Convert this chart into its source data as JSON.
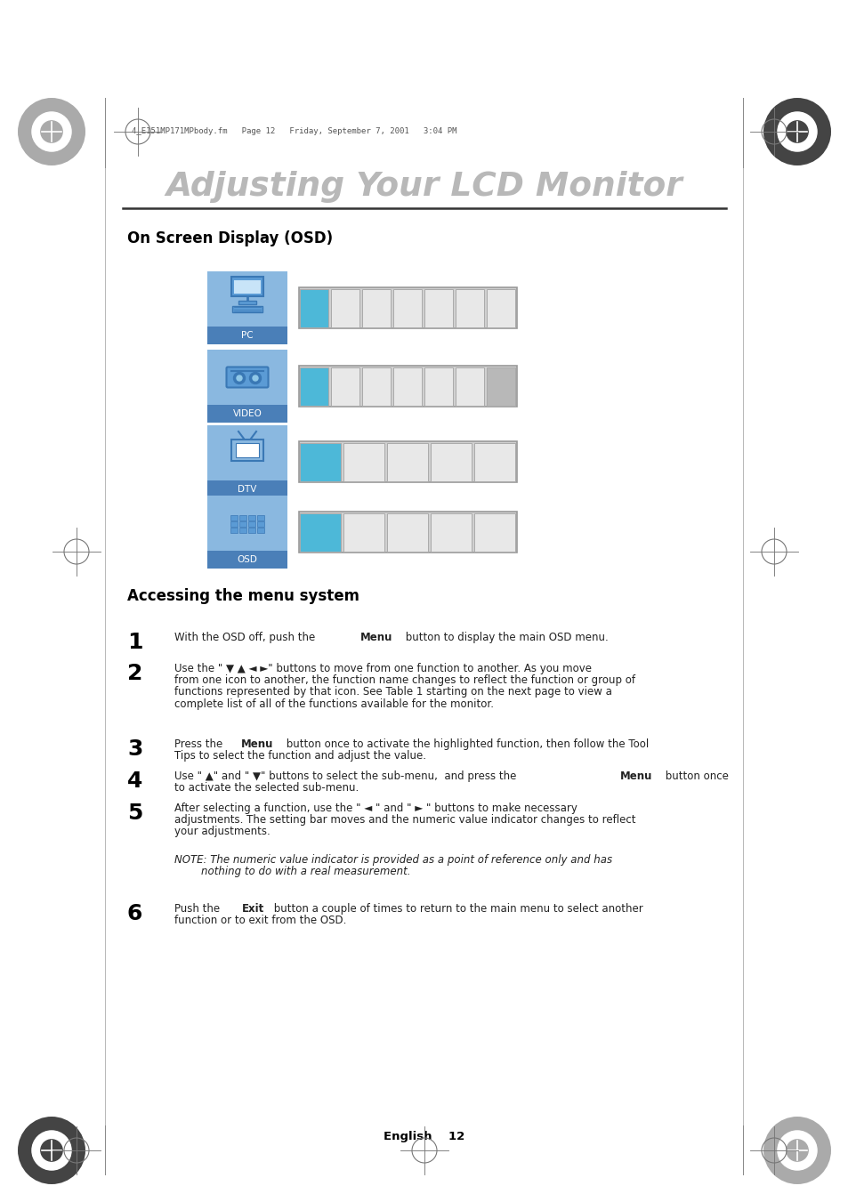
{
  "title": "Adjusting Your LCD Monitor",
  "title_color": "#b8b8b8",
  "bg_color": "#ffffff",
  "header_text": "4_E151MP171MPbody.fm   Page 12   Friday, September 7, 2001   3:04 PM",
  "section1_title": "On Screen Display (OSD)",
  "section2_title": "Accessing the menu system",
  "blue_light": "#8ab8e0",
  "blue_mid": "#5b9bd5",
  "blue_dark": "#3a78b5",
  "blue_label": "#4a7fb8",
  "cyan_highlight": "#4db8d8",
  "toolbar_bg": "#d8d8d8",
  "cell_bg": "#e8e8e8",
  "cell_border": "#aaaaaa",
  "gray_cell": "#b8b8b8",
  "text_color": "#222222",
  "note_indent": 80,
  "rows": [
    {
      "label": "PC",
      "n_cells": 7,
      "first_cyan": true,
      "last_gray": false,
      "gray_from": null
    },
    {
      "label": "VIDEO",
      "n_cells": 7,
      "first_cyan": true,
      "last_gray": true,
      "gray_from": 6
    },
    {
      "label": "DTV",
      "n_cells": 5,
      "first_cyan": true,
      "last_gray": false,
      "gray_from": null
    },
    {
      "label": "OSD",
      "n_cells": 5,
      "first_cyan": true,
      "last_gray": false,
      "gray_from": null
    }
  ],
  "footer": "English    12"
}
